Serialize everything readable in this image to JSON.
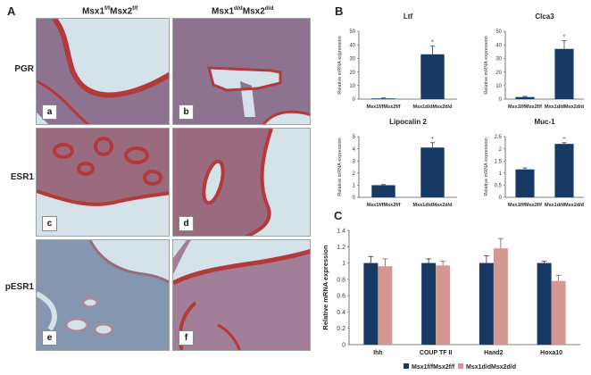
{
  "panels": {
    "a_letter": "A",
    "b_letter": "B",
    "c_letter": "C"
  },
  "histology": {
    "col_headers": [
      {
        "base1": "Msx1",
        "sup1": "f/f",
        "base2": "Msx2",
        "sup2": "f/f"
      },
      {
        "base1": "Msx1",
        "sup1": "d/d",
        "base2": "Msx2",
        "sup2": "d/d"
      }
    ],
    "rows": [
      {
        "label": "PGR",
        "sublabels": [
          "a",
          "b"
        ]
      },
      {
        "label": "ESR1",
        "sublabels": [
          "c",
          "d"
        ]
      },
      {
        "label": "pESR1",
        "sublabels": [
          "e",
          "f"
        ]
      }
    ]
  },
  "colors": {
    "navy": "#163a63",
    "pink": "#d59891",
    "stain_red": "#b33a3a",
    "stain_blue": "#6f8fb5",
    "lumen": "#d6e2ea"
  },
  "chart_data": [
    {
      "type": "bar",
      "title": "Ltf",
      "ylabel": "Relative mRNA expression",
      "categories": [
        "Msx1f/fMsx2f/f",
        "Msx1d/dMsx2d/d"
      ],
      "values": [
        0.5,
        33
      ],
      "errors": [
        0.3,
        6
      ],
      "significance": [
        "",
        "*"
      ],
      "ylim": [
        0,
        50
      ],
      "yticks": [
        0,
        10,
        20,
        30,
        40,
        50
      ],
      "grid": false
    },
    {
      "type": "bar",
      "title": "Clca3",
      "ylabel": "Relative mRNA expression",
      "categories": [
        "Msx1f/fMsx2f/f",
        "Msx1d/dMsx2d/d"
      ],
      "values": [
        1.5,
        37
      ],
      "errors": [
        0.5,
        6
      ],
      "significance": [
        "",
        "*"
      ],
      "ylim": [
        0,
        50
      ],
      "yticks": [
        0,
        10,
        20,
        30,
        40,
        50
      ],
      "grid": false
    },
    {
      "type": "bar",
      "title": "Lipocalin 2",
      "ylabel": "Relative mRNA expression",
      "categories": [
        "Msx1f/fMsx2f/f",
        "Msx1d/dMsx2d/d"
      ],
      "values": [
        1,
        4.1
      ],
      "errors": [
        0.05,
        0.4
      ],
      "significance": [
        "",
        "*"
      ],
      "ylim": [
        0,
        5
      ],
      "yticks": [
        0,
        1,
        2,
        3,
        4,
        5
      ],
      "grid": false
    },
    {
      "type": "bar",
      "title": "Muc-1",
      "ylabel": "Relative mRNA expression",
      "categories": [
        "Msx1f/fMsx2f/f",
        "Msx1d/dMsx2d/d"
      ],
      "values": [
        1.15,
        2.2
      ],
      "errors": [
        0.06,
        0.05
      ],
      "significance": [
        "",
        "*"
      ],
      "ylim": [
        0,
        2.5
      ],
      "yticks": [
        0,
        0.5,
        1,
        1.5,
        2,
        2.5
      ],
      "grid": false
    },
    {
      "type": "bar",
      "title": "",
      "ylabel": "Relative mRNA expression",
      "categories": [
        "Ihh",
        "COUP TF II",
        "Hand2",
        "Hoxa10"
      ],
      "series": [
        {
          "name": "Msx1f/fMsx2f/f",
          "values": [
            1.0,
            1.0,
            1.0,
            1.0
          ],
          "errors": [
            0.08,
            0.05,
            0.09,
            0.02
          ]
        },
        {
          "name": "Msx1d/dMsx2d/d",
          "values": [
            0.96,
            0.97,
            1.18,
            0.78
          ],
          "errors": [
            0.09,
            0.05,
            0.12,
            0.07
          ]
        }
      ],
      "ylim": [
        0,
        1.4
      ],
      "yticks": [
        0,
        0.2,
        0.4,
        0.6,
        0.8,
        1,
        1.2,
        1.4
      ],
      "legend": "bottom",
      "grid": false
    }
  ]
}
